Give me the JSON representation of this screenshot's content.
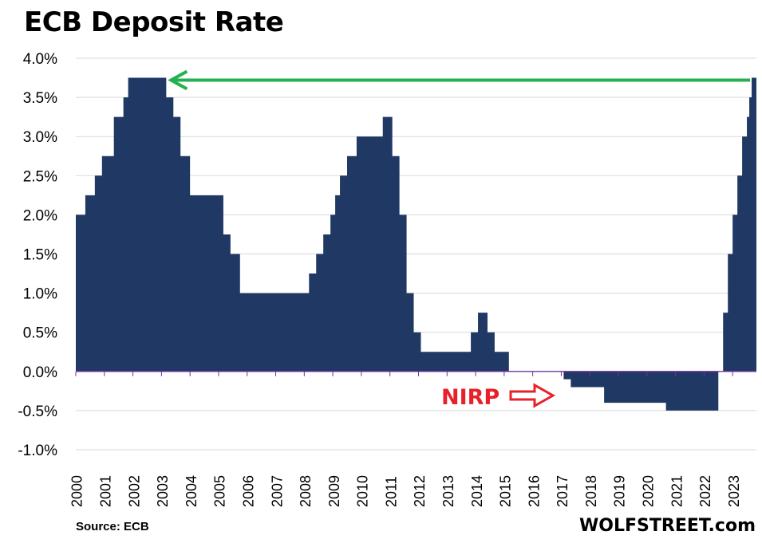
{
  "title": "ECB Deposit Rate",
  "source": "Source: ECB",
  "brand": "WOLFSTREET.com",
  "colors": {
    "area": "#1f3864",
    "grid": "#d9d9d9",
    "zero_line": "#7030a0",
    "peak_arrow": "#22b14c",
    "nirp": "#e8202a"
  },
  "annotations": {
    "nirp_label": "NIRP"
  },
  "chart_data": {
    "type": "area",
    "title": "ECB Deposit Rate",
    "xlabel": "",
    "ylabel": "",
    "ylim": [
      -1.0,
      4.0
    ],
    "y_ticks": [
      4.0,
      3.5,
      3.0,
      2.5,
      2.0,
      1.5,
      1.0,
      0.5,
      0.0,
      -0.5,
      -1.0
    ],
    "y_tick_labels": [
      "4.0%",
      "3.5%",
      "3.0%",
      "2.5%",
      "2.0%",
      "1.5%",
      "1.0%",
      "0.5%",
      "0.0%",
      "-0.5%",
      "-1.0%"
    ],
    "x_ticks": [
      "2000",
      "2001",
      "2002",
      "2003",
      "2004",
      "2005",
      "2006",
      "2007",
      "2008",
      "2009",
      "2010",
      "2011",
      "2012",
      "2013",
      "2014",
      "2015",
      "2016",
      "2017",
      "2018",
      "2019",
      "2020",
      "2021",
      "2022",
      "2023"
    ],
    "x_range": [
      "2000-01",
      "2023-10"
    ],
    "grid": true,
    "legend": "none",
    "series": [
      {
        "values": [
          {
            "date": "2000-01",
            "value": 2.0
          },
          {
            "date": "2000-05",
            "value": 2.25
          },
          {
            "date": "2000-09",
            "value": 2.5
          },
          {
            "date": "2000-12",
            "value": 2.75
          },
          {
            "date": "2001-05",
            "value": 3.25
          },
          {
            "date": "2001-09",
            "value": 3.5
          },
          {
            "date": "2001-11",
            "value": 3.75
          },
          {
            "date": "2003-03",
            "value": 3.5
          },
          {
            "date": "2003-06",
            "value": 3.25
          },
          {
            "date": "2003-09",
            "value": 2.75
          },
          {
            "date": "2004-01",
            "value": 2.25
          },
          {
            "date": "2005-03",
            "value": 1.75
          },
          {
            "date": "2005-06",
            "value": 1.5
          },
          {
            "date": "2005-10",
            "value": 1.0
          },
          {
            "date": "2007-08",
            "value": 1.0
          },
          {
            "date": "2008-03",
            "value": 1.25
          },
          {
            "date": "2008-06",
            "value": 1.5
          },
          {
            "date": "2008-09",
            "value": 1.75
          },
          {
            "date": "2008-12",
            "value": 2.0
          },
          {
            "date": "2009-02",
            "value": 2.25
          },
          {
            "date": "2009-04",
            "value": 2.5
          },
          {
            "date": "2009-07",
            "value": 2.75
          },
          {
            "date": "2009-11",
            "value": 3.0
          },
          {
            "date": "2010-10",
            "value": 3.25
          },
          {
            "date": "2011-02",
            "value": 2.75
          },
          {
            "date": "2011-05",
            "value": 2.0
          },
          {
            "date": "2011-08",
            "value": 1.0
          },
          {
            "date": "2011-11",
            "value": 0.5
          },
          {
            "date": "2012-02",
            "value": 0.25
          },
          {
            "date": "2013-09",
            "value": 0.25
          },
          {
            "date": "2013-11",
            "value": 0.5
          },
          {
            "date": "2014-02",
            "value": 0.75
          },
          {
            "date": "2014-06",
            "value": 0.5
          },
          {
            "date": "2014-09",
            "value": 0.25
          },
          {
            "date": "2015-03",
            "value": 0.0
          },
          {
            "date": "2017-02",
            "value": -0.1
          },
          {
            "date": "2017-05",
            "value": -0.2
          },
          {
            "date": "2018-07",
            "value": -0.4
          },
          {
            "date": "2020-09",
            "value": -0.5
          },
          {
            "date": "2022-07",
            "value": 0.0
          },
          {
            "date": "2022-09",
            "value": 0.75
          },
          {
            "date": "2022-11",
            "value": 1.5
          },
          {
            "date": "2023-01",
            "value": 2.0
          },
          {
            "date": "2023-03",
            "value": 2.5
          },
          {
            "date": "2023-05",
            "value": 3.0
          },
          {
            "date": "2023-07",
            "value": 3.25
          },
          {
            "date": "2023-08",
            "value": 3.5
          },
          {
            "date": "2023-09",
            "value": 3.75
          },
          {
            "date": "2023-10",
            "value": 3.75
          }
        ]
      }
    ],
    "reference_line": {
      "from": "2003-03",
      "to": "2023-09",
      "value": 3.75
    }
  }
}
